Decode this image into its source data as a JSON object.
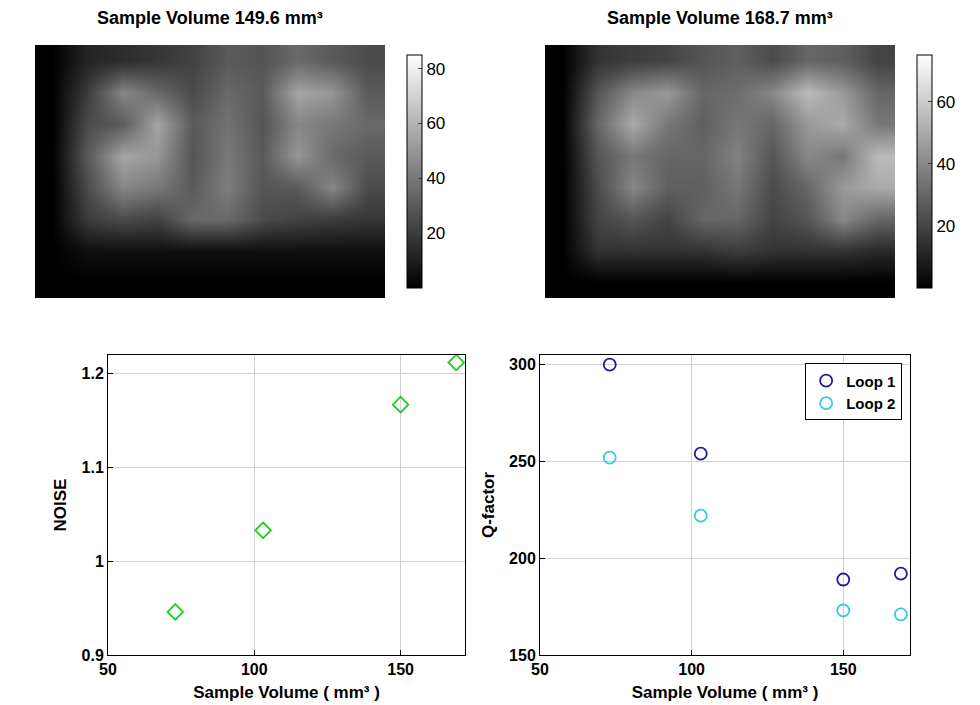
{
  "chart_data": [
    {
      "type": "heatmap",
      "title": "Sample Volume 149.6 mm³",
      "cells": [
        [
          0,
          12,
          15,
          18,
          22,
          30,
          28,
          35,
          30,
          25
        ],
        [
          0,
          20,
          45,
          35,
          25,
          35,
          30,
          55,
          50,
          30
        ],
        [
          0,
          25,
          30,
          55,
          30,
          38,
          28,
          45,
          40,
          35
        ],
        [
          0,
          30,
          55,
          50,
          28,
          40,
          30,
          50,
          35,
          30
        ],
        [
          0,
          25,
          45,
          40,
          30,
          42,
          28,
          30,
          45,
          25
        ],
        [
          0,
          20,
          25,
          22,
          35,
          35,
          25,
          22,
          20,
          18
        ],
        [
          0,
          5,
          5,
          5,
          5,
          5,
          5,
          5,
          5,
          5
        ],
        [
          0,
          0,
          0,
          0,
          0,
          0,
          0,
          0,
          0,
          0
        ]
      ],
      "colorbar_range": [
        0,
        85
      ],
      "colorbar_ticks": [
        20,
        40,
        60,
        80
      ]
    },
    {
      "type": "heatmap",
      "title": "Sample Volume 168.7 mm³",
      "cells": [
        [
          0,
          15,
          18,
          20,
          25,
          28,
          22,
          30,
          28,
          20
        ],
        [
          0,
          25,
          40,
          45,
          30,
          32,
          40,
          55,
          45,
          30
        ],
        [
          0,
          30,
          50,
          35,
          28,
          35,
          30,
          45,
          50,
          35
        ],
        [
          0,
          25,
          35,
          30,
          30,
          38,
          25,
          40,
          35,
          55
        ],
        [
          0,
          22,
          40,
          28,
          28,
          35,
          22,
          30,
          45,
          50
        ],
        [
          0,
          20,
          25,
          20,
          30,
          30,
          20,
          25,
          40,
          30
        ],
        [
          0,
          15,
          15,
          15,
          15,
          18,
          15,
          15,
          15,
          12
        ],
        [
          0,
          0,
          0,
          0,
          0,
          0,
          0,
          0,
          0,
          0
        ]
      ],
      "colorbar_range": [
        0,
        75
      ],
      "colorbar_ticks": [
        20,
        40,
        60
      ]
    },
    {
      "type": "scatter",
      "xlabel": "Sample Volume ( mm³ )",
      "ylabel": "NOISE",
      "x": [
        73,
        103,
        150,
        169
      ],
      "values": [
        0.946,
        1.033,
        1.167,
        1.212
      ],
      "color": "#22cc22",
      "marker": "diamond-open",
      "xlim": [
        50,
        172
      ],
      "xticks": [
        50,
        100,
        150
      ],
      "ylim": [
        0.9,
        1.22
      ],
      "yticks": [
        0.9,
        1,
        1.1,
        1.2
      ],
      "grid": true
    },
    {
      "type": "scatter",
      "xlabel": "Sample Volume ( mm³ )",
      "ylabel": "Q-factor",
      "x": [
        73,
        103,
        150,
        169
      ],
      "series": [
        {
          "name": "Loop 1",
          "color": "#1c1c9c",
          "marker": "circle-open",
          "values": [
            300,
            254,
            189,
            192
          ]
        },
        {
          "name": "Loop 2",
          "color": "#33ccdd",
          "marker": "circle-open",
          "values": [
            252,
            222,
            173,
            171
          ]
        }
      ],
      "xlim": [
        50,
        172
      ],
      "xticks": [
        50,
        100,
        150
      ],
      "ylim": [
        150,
        305
      ],
      "yticks": [
        150,
        200,
        250,
        300
      ],
      "grid": true,
      "legend": "upper right"
    }
  ]
}
